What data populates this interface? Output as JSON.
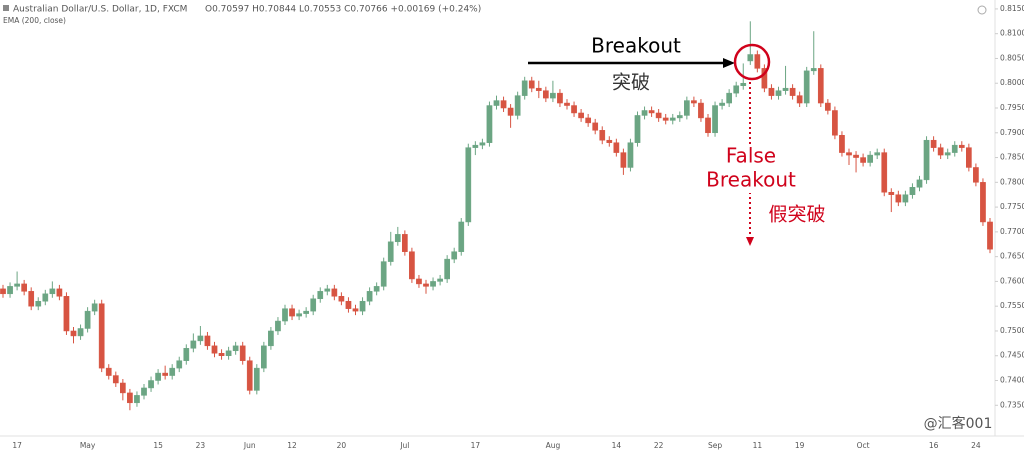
{
  "chart_data": {
    "type": "candlestick",
    "title": "Australian Dollar/U.S. Dollar, 1D, FXCM",
    "ohlc_header": "O0.70597 H0.70844 L0.70553 C0.70766 +0.00169 (+0.24%)",
    "indicator": "EMA (200, close)",
    "watermark": "@汇客001",
    "annotations": {
      "breakout": "Breakout",
      "breakout_cn": "突破",
      "false_breakout": [
        "False",
        "Breakout"
      ],
      "false_breakout_cn": "假突破"
    },
    "up_color": "#6ba583",
    "down_color": "#d75442",
    "annotation_color": "#d0021b",
    "grid": false,
    "ylim": [
      0.7288,
      0.8168
    ],
    "yticks": [
      {
        "value": 0.735,
        "label": "0.73500"
      },
      {
        "value": 0.74,
        "label": "0.74000"
      },
      {
        "value": 0.745,
        "label": "0.74500"
      },
      {
        "value": 0.75,
        "label": "0.75000"
      },
      {
        "value": 0.755,
        "label": "0.75500"
      },
      {
        "value": 0.76,
        "label": "0.76000"
      },
      {
        "value": 0.765,
        "label": "0.76500"
      },
      {
        "value": 0.77,
        "label": "0.77000"
      },
      {
        "value": 0.775,
        "label": "0.77500"
      },
      {
        "value": 0.78,
        "label": "0.78000"
      },
      {
        "value": 0.785,
        "label": "0.78500"
      },
      {
        "value": 0.79,
        "label": "0.79000"
      },
      {
        "value": 0.795,
        "label": "0.79500"
      },
      {
        "value": 0.8,
        "label": "0.80000"
      },
      {
        "value": 0.805,
        "label": "0.80500"
      },
      {
        "value": 0.81,
        "label": "0.81000"
      },
      {
        "value": 0.815,
        "label": "0.81500"
      }
    ],
    "categories": [
      null,
      null,
      "17",
      null,
      null,
      null,
      null,
      null,
      null,
      null,
      null,
      null,
      "May",
      null,
      null,
      null,
      null,
      null,
      null,
      null,
      null,
      null,
      "15",
      null,
      null,
      null,
      null,
      null,
      "23",
      null,
      null,
      null,
      null,
      null,
      null,
      "Jun",
      null,
      null,
      null,
      null,
      null,
      "12",
      null,
      null,
      null,
      null,
      null,
      null,
      "20",
      null,
      null,
      null,
      null,
      null,
      null,
      null,
      null,
      "Jul",
      null,
      null,
      null,
      null,
      null,
      null,
      null,
      null,
      null,
      "17",
      null,
      null,
      null,
      null,
      null,
      null,
      null,
      null,
      null,
      null,
      "Aug",
      null,
      null,
      null,
      null,
      null,
      null,
      null,
      null,
      "14",
      null,
      null,
      null,
      null,
      null,
      "22",
      null,
      null,
      null,
      null,
      null,
      null,
      null,
      "Sep",
      null,
      null,
      null,
      null,
      null,
      "11",
      null,
      null,
      null,
      null,
      null,
      "19",
      null,
      null,
      null,
      null,
      null,
      null,
      null,
      null,
      "Oct",
      null,
      null,
      null,
      null,
      null,
      null,
      null,
      null,
      null,
      "16",
      null,
      null,
      null,
      null,
      null,
      "24",
      null,
      null
    ],
    "ohlc": [
      [
        0.7585,
        0.7593,
        0.7567,
        0.7575
      ],
      [
        0.7575,
        0.7598,
        0.7567,
        0.759
      ],
      [
        0.759,
        0.762,
        0.7582,
        0.7595
      ],
      [
        0.7595,
        0.7603,
        0.7572,
        0.758
      ],
      [
        0.758,
        0.7588,
        0.7542,
        0.755
      ],
      [
        0.755,
        0.7568,
        0.7542,
        0.756
      ],
      [
        0.756,
        0.7583,
        0.7552,
        0.7575
      ],
      [
        0.7575,
        0.76,
        0.7567,
        0.7585
      ],
      [
        0.7585,
        0.7593,
        0.7562,
        0.757
      ],
      [
        0.757,
        0.7578,
        0.7492,
        0.75
      ],
      [
        0.75,
        0.7508,
        0.7475,
        0.749
      ],
      [
        0.749,
        0.7513,
        0.7482,
        0.7505
      ],
      [
        0.7505,
        0.7548,
        0.7497,
        0.754
      ],
      [
        0.754,
        0.7563,
        0.7532,
        0.7555
      ],
      [
        0.7555,
        0.7563,
        0.7417,
        0.7425
      ],
      [
        0.7425,
        0.7433,
        0.7402,
        0.741
      ],
      [
        0.741,
        0.7418,
        0.7387,
        0.7395
      ],
      [
        0.7395,
        0.7403,
        0.736,
        0.7375
      ],
      [
        0.7375,
        0.7383,
        0.734,
        0.7355
      ],
      [
        0.7355,
        0.7378,
        0.7347,
        0.737
      ],
      [
        0.737,
        0.7393,
        0.7362,
        0.7385
      ],
      [
        0.7385,
        0.7408,
        0.7377,
        0.74
      ],
      [
        0.74,
        0.7423,
        0.7392,
        0.7415
      ],
      [
        0.7415,
        0.743,
        0.7402,
        0.741
      ],
      [
        0.741,
        0.7433,
        0.7402,
        0.7425
      ],
      [
        0.7425,
        0.7448,
        0.7417,
        0.744
      ],
      [
        0.744,
        0.7473,
        0.7432,
        0.7465
      ],
      [
        0.7465,
        0.7495,
        0.7457,
        0.748
      ],
      [
        0.748,
        0.751,
        0.7472,
        0.749
      ],
      [
        0.749,
        0.7498,
        0.7462,
        0.747
      ],
      [
        0.747,
        0.7478,
        0.7447,
        0.7455
      ],
      [
        0.7455,
        0.7463,
        0.7442,
        0.745
      ],
      [
        0.745,
        0.7468,
        0.7442,
        0.746
      ],
      [
        0.746,
        0.7478,
        0.7452,
        0.747
      ],
      [
        0.747,
        0.7478,
        0.7432,
        0.744
      ],
      [
        0.744,
        0.7448,
        0.7372,
        0.738
      ],
      [
        0.738,
        0.7433,
        0.7372,
        0.7425
      ],
      [
        0.7425,
        0.7478,
        0.7417,
        0.747
      ],
      [
        0.747,
        0.7508,
        0.7462,
        0.75
      ],
      [
        0.75,
        0.7528,
        0.7492,
        0.752
      ],
      [
        0.752,
        0.7553,
        0.7512,
        0.7545
      ],
      [
        0.7545,
        0.7553,
        0.7522,
        0.753
      ],
      [
        0.753,
        0.7543,
        0.7522,
        0.7535
      ],
      [
        0.7535,
        0.7548,
        0.7527,
        0.754
      ],
      [
        0.754,
        0.7573,
        0.7532,
        0.7565
      ],
      [
        0.7565,
        0.7588,
        0.7557,
        0.758
      ],
      [
        0.758,
        0.7593,
        0.7572,
        0.7585
      ],
      [
        0.7585,
        0.7593,
        0.7562,
        0.757
      ],
      [
        0.757,
        0.7578,
        0.7552,
        0.756
      ],
      [
        0.756,
        0.7568,
        0.7537,
        0.7545
      ],
      [
        0.7545,
        0.7553,
        0.7532,
        0.754
      ],
      [
        0.754,
        0.7568,
        0.7532,
        0.756
      ],
      [
        0.756,
        0.7588,
        0.7552,
        0.758
      ],
      [
        0.758,
        0.7598,
        0.7572,
        0.759
      ],
      [
        0.759,
        0.7648,
        0.7582,
        0.764
      ],
      [
        0.764,
        0.77,
        0.7632,
        0.768
      ],
      [
        0.768,
        0.771,
        0.7672,
        0.7695
      ],
      [
        0.7695,
        0.7703,
        0.7652,
        0.766
      ],
      [
        0.766,
        0.7668,
        0.7597,
        0.7605
      ],
      [
        0.7605,
        0.7613,
        0.7587,
        0.7595
      ],
      [
        0.7595,
        0.7603,
        0.7575,
        0.759
      ],
      [
        0.759,
        0.7608,
        0.7582,
        0.76
      ],
      [
        0.76,
        0.7613,
        0.7592,
        0.7605
      ],
      [
        0.7605,
        0.7653,
        0.7597,
        0.7645
      ],
      [
        0.7645,
        0.7668,
        0.7637,
        0.766
      ],
      [
        0.766,
        0.7728,
        0.7652,
        0.772
      ],
      [
        0.772,
        0.7878,
        0.7712,
        0.787
      ],
      [
        0.787,
        0.7883,
        0.7855,
        0.7875
      ],
      [
        0.7875,
        0.7888,
        0.7867,
        0.788
      ],
      [
        0.788,
        0.7963,
        0.7872,
        0.7955
      ],
      [
        0.7955,
        0.7975,
        0.7947,
        0.7965
      ],
      [
        0.7965,
        0.7973,
        0.7942,
        0.795
      ],
      [
        0.795,
        0.7958,
        0.791,
        0.7935
      ],
      [
        0.7935,
        0.7983,
        0.7927,
        0.7975
      ],
      [
        0.7975,
        0.8013,
        0.7967,
        0.8005
      ],
      [
        0.8005,
        0.8013,
        0.7982,
        0.799
      ],
      [
        0.799,
        0.8005,
        0.797,
        0.7985
      ],
      [
        0.7985,
        0.7993,
        0.7962,
        0.797
      ],
      [
        0.797,
        0.8005,
        0.7962,
        0.798
      ],
      [
        0.798,
        0.7988,
        0.7952,
        0.796
      ],
      [
        0.796,
        0.7968,
        0.7947,
        0.7955
      ],
      [
        0.7955,
        0.7963,
        0.7932,
        0.794
      ],
      [
        0.794,
        0.7948,
        0.7922,
        0.793
      ],
      [
        0.793,
        0.7938,
        0.7912,
        0.792
      ],
      [
        0.792,
        0.7928,
        0.7897,
        0.7905
      ],
      [
        0.7905,
        0.7913,
        0.7877,
        0.7885
      ],
      [
        0.7885,
        0.7893,
        0.7872,
        0.788
      ],
      [
        0.788,
        0.7888,
        0.7852,
        0.786
      ],
      [
        0.786,
        0.7868,
        0.7815,
        0.783
      ],
      [
        0.783,
        0.7888,
        0.7822,
        0.788
      ],
      [
        0.788,
        0.7943,
        0.7872,
        0.7935
      ],
      [
        0.7935,
        0.7953,
        0.7927,
        0.7945
      ],
      [
        0.7945,
        0.7953,
        0.7932,
        0.794
      ],
      [
        0.794,
        0.7948,
        0.7922,
        0.793
      ],
      [
        0.793,
        0.7938,
        0.7917,
        0.7925
      ],
      [
        0.7925,
        0.7938,
        0.7917,
        0.793
      ],
      [
        0.793,
        0.7943,
        0.7922,
        0.7935
      ],
      [
        0.7935,
        0.7973,
        0.7927,
        0.7965
      ],
      [
        0.7965,
        0.7973,
        0.7952,
        0.796
      ],
      [
        0.796,
        0.7968,
        0.7922,
        0.793
      ],
      [
        0.793,
        0.7938,
        0.7892,
        0.79
      ],
      [
        0.79,
        0.7963,
        0.7892,
        0.7955
      ],
      [
        0.7955,
        0.7968,
        0.7947,
        0.796
      ],
      [
        0.796,
        0.7988,
        0.7952,
        0.798
      ],
      [
        0.798,
        0.8003,
        0.7972,
        0.7995
      ],
      [
        0.7995,
        0.804,
        0.7987,
        0.8
      ],
      [
        0.8045,
        0.8125,
        0.8037,
        0.8058
      ],
      [
        0.8058,
        0.8066,
        0.8022,
        0.803
      ],
      [
        0.803,
        0.8038,
        0.7982,
        0.799
      ],
      [
        0.799,
        0.7998,
        0.7967,
        0.7975
      ],
      [
        0.7975,
        0.7993,
        0.7967,
        0.7985
      ],
      [
        0.7985,
        0.8035,
        0.7977,
        0.799
      ],
      [
        0.799,
        0.7998,
        0.7967,
        0.7975
      ],
      [
        0.7975,
        0.7983,
        0.7952,
        0.796
      ],
      [
        0.796,
        0.8033,
        0.7952,
        0.8025
      ],
      [
        0.8025,
        0.8105,
        0.8017,
        0.803
      ],
      [
        0.803,
        0.8038,
        0.7952,
        0.796
      ],
      [
        0.796,
        0.7968,
        0.7937,
        0.7945
      ],
      [
        0.7945,
        0.7953,
        0.7887,
        0.7895
      ],
      [
        0.7895,
        0.7903,
        0.7852,
        0.786
      ],
      [
        0.786,
        0.7868,
        0.7835,
        0.7855
      ],
      [
        0.7855,
        0.7863,
        0.782,
        0.785
      ],
      [
        0.785,
        0.7858,
        0.7832,
        0.784
      ],
      [
        0.784,
        0.7863,
        0.7832,
        0.7855
      ],
      [
        0.7855,
        0.7868,
        0.7847,
        0.786
      ],
      [
        0.786,
        0.7868,
        0.7772,
        0.778
      ],
      [
        0.778,
        0.7788,
        0.774,
        0.7775
      ],
      [
        0.7775,
        0.7783,
        0.7752,
        0.776
      ],
      [
        0.776,
        0.7783,
        0.7752,
        0.7775
      ],
      [
        0.7775,
        0.7798,
        0.7767,
        0.779
      ],
      [
        0.779,
        0.7813,
        0.7782,
        0.7805
      ],
      [
        0.7805,
        0.7893,
        0.7797,
        0.7885
      ],
      [
        0.7885,
        0.7893,
        0.7862,
        0.787
      ],
      [
        0.787,
        0.7878,
        0.7847,
        0.7855
      ],
      [
        0.7855,
        0.7868,
        0.7847,
        0.786
      ],
      [
        0.786,
        0.7883,
        0.7852,
        0.7875
      ],
      [
        0.7875,
        0.7883,
        0.7862,
        0.787
      ],
      [
        0.787,
        0.7878,
        0.7822,
        0.783
      ],
      [
        0.783,
        0.7838,
        0.7792,
        0.78
      ],
      [
        0.78,
        0.7808,
        0.7712,
        0.772
      ],
      [
        0.772,
        0.7728,
        0.7657,
        0.7665
      ]
    ]
  }
}
